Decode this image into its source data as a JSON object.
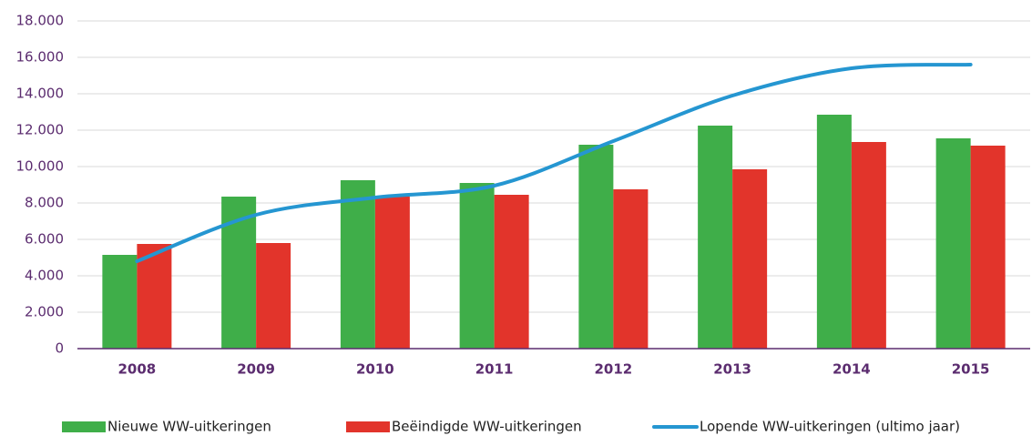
{
  "chart_data": {
    "type": "bar",
    "categories": [
      "2008",
      "2009",
      "2010",
      "2011",
      "2012",
      "2013",
      "2014",
      "2015"
    ],
    "series": [
      {
        "name": "Nieuwe WW-uitkeringen",
        "type": "bar",
        "color": "#3fae49",
        "values": [
          5150,
          8350,
          9250,
          9100,
          11200,
          12250,
          12850,
          11550
        ]
      },
      {
        "name": "Beëindigde WW-uitkeringen",
        "type": "bar",
        "color": "#e2342b",
        "values": [
          5750,
          5800,
          8350,
          8450,
          8750,
          9850,
          11350,
          11150
        ]
      },
      {
        "name": "Lopende WW-uitkeringen (ultimo jaar)",
        "type": "line",
        "color": "#2596d1",
        "values": [
          4800,
          7350,
          8300,
          8950,
          11400,
          13900,
          15400,
          15600
        ]
      }
    ],
    "ylim": [
      0,
      18000
    ],
    "yticks": [
      0,
      {
        "value": 2000,
        "label": "2.000"
      },
      {
        "value": 4000,
        "label": "4.000"
      },
      {
        "value": 6000,
        "label": "6.000"
      },
      {
        "value": 8000,
        "label": "8.000"
      },
      {
        "value": 10000,
        "label": "10.000"
      },
      {
        "value": 12000,
        "label": "12.000"
      },
      {
        "value": 14000,
        "label": "14.000"
      },
      {
        "value": 16000,
        "label": "16.000"
      },
      {
        "value": 18000,
        "label": "18.000"
      }
    ],
    "grid": true,
    "legend": "bottom"
  }
}
